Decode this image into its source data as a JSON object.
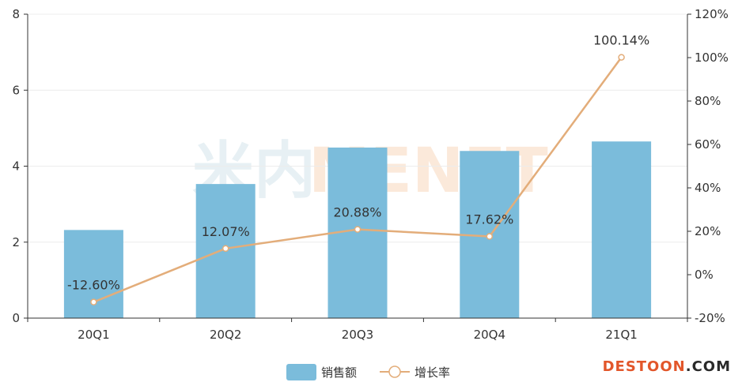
{
  "chart_data": {
    "type": "bar",
    "categories": [
      "20Q1",
      "20Q2",
      "20Q3",
      "20Q4",
      "21Q1"
    ],
    "series": [
      {
        "name": "销售额",
        "type": "bar",
        "axis": "left",
        "values": [
          2.32,
          3.53,
          4.49,
          4.4,
          4.65
        ],
        "color": "#7bbcdb"
      },
      {
        "name": "增长率",
        "type": "line",
        "axis": "right",
        "values": [
          -12.6,
          12.07,
          20.88,
          17.62,
          100.14
        ],
        "labels": [
          "-12.60%",
          "12.07%",
          "20.88%",
          "17.62%",
          "100.14%"
        ],
        "color": "#e3ad7a"
      }
    ],
    "y_left": {
      "min": 0,
      "max": 8,
      "ticks": [
        "0",
        "2",
        "4",
        "6",
        "8"
      ]
    },
    "y_right": {
      "min": -20,
      "max": 120,
      "ticks": [
        "-20%",
        "0%",
        "20%",
        "40%",
        "60%",
        "80%",
        "100%",
        "120%"
      ]
    },
    "title": "",
    "xlabel": "",
    "ylabel": "",
    "grid": true,
    "legend": "bottom-center"
  },
  "watermark": {
    "cn": "米内",
    "en": "MENET"
  },
  "brand": {
    "part1": "DESTOON",
    "part2": ".COM"
  }
}
